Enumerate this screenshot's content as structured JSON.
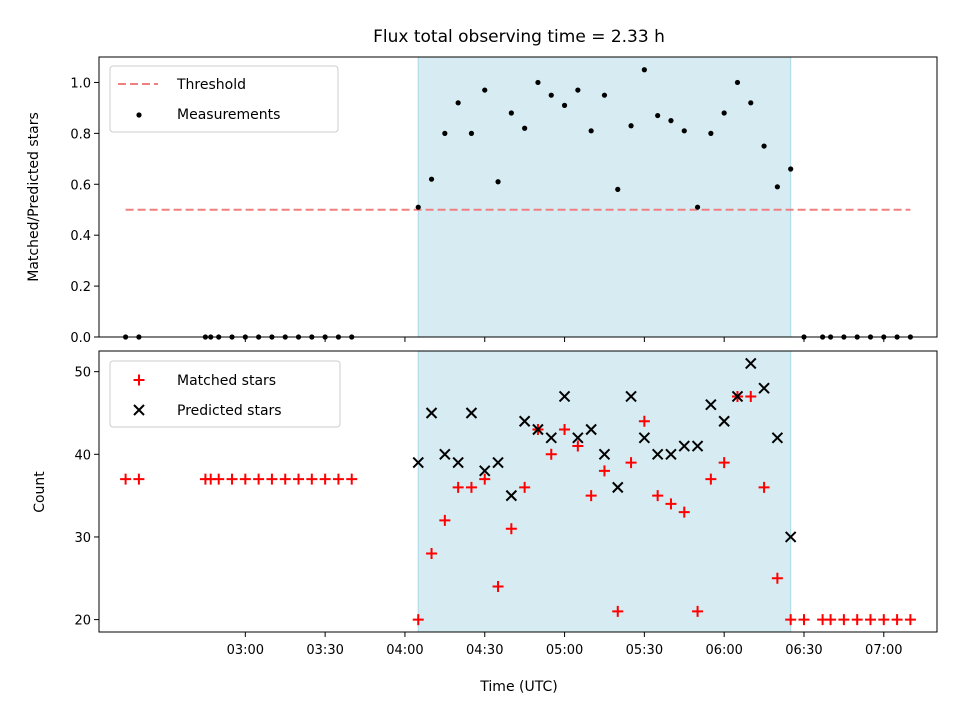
{
  "chart_data": [
    {
      "type": "scatter",
      "title": "Flux total observing time = 2.33 h",
      "xlabel": "",
      "ylabel": "Matched/Predicted stars",
      "ylim": [
        0,
        1.1
      ],
      "yticks": [
        "0.0",
        "0.2",
        "0.4",
        "0.6",
        "0.8",
        "1.0"
      ],
      "shaded_span": [
        "04:05",
        "06:25"
      ],
      "legend_position": "upper-left",
      "threshold": {
        "name": "Threshold",
        "y": 0.5,
        "x_range": [
          "02:15",
          "07:10"
        ],
        "color": "#f08080"
      },
      "series": [
        {
          "name": "Measurements",
          "color": "#000000",
          "x": [
            "02:15",
            "02:20",
            "02:45",
            "02:47",
            "02:50",
            "02:55",
            "03:00",
            "03:05",
            "03:10",
            "03:15",
            "03:20",
            "03:25",
            "03:30",
            "03:35",
            "03:40",
            "04:05",
            "04:10",
            "04:15",
            "04:20",
            "04:25",
            "04:30",
            "04:35",
            "04:40",
            "04:45",
            "04:50",
            "04:55",
            "05:00",
            "05:05",
            "05:10",
            "05:15",
            "05:20",
            "05:25",
            "05:30",
            "05:35",
            "05:40",
            "05:45",
            "05:50",
            "05:55",
            "06:00",
            "06:05",
            "06:10",
            "06:15",
            "06:20",
            "06:25",
            "06:30",
            "06:37",
            "06:40",
            "06:45",
            "06:50",
            "06:55",
            "07:00",
            "07:05",
            "07:10"
          ],
          "y": [
            0,
            0,
            0,
            0,
            0,
            0,
            0,
            0,
            0,
            0,
            0,
            0,
            0,
            0,
            0,
            0.51,
            0.62,
            0.8,
            0.92,
            0.8,
            0.97,
            0.61,
            0.88,
            0.82,
            1.0,
            0.95,
            0.91,
            0.97,
            0.81,
            0.95,
            0.58,
            0.83,
            1.05,
            0.87,
            0.85,
            0.81,
            0.51,
            0.8,
            0.88,
            1.0,
            0.92,
            0.75,
            0.59,
            0.66,
            0,
            0,
            0,
            0,
            0,
            0,
            0,
            0,
            0
          ]
        }
      ]
    },
    {
      "type": "scatter",
      "title": "",
      "xlabel": "Time (UTC)",
      "ylabel": "Count",
      "ylim": [
        18.5,
        52.5
      ],
      "yticks": [
        "20",
        "30",
        "40",
        "50"
      ],
      "xticks": [
        "03:00",
        "03:30",
        "04:00",
        "04:30",
        "05:00",
        "05:30",
        "06:00",
        "06:30",
        "07:00"
      ],
      "legend_position": "upper-left",
      "series": [
        {
          "name": "Matched stars",
          "marker": "plus",
          "color": "#ff0000",
          "x": [
            "02:15",
            "02:20",
            "02:45",
            "02:47",
            "02:50",
            "02:55",
            "03:00",
            "03:05",
            "03:10",
            "03:15",
            "03:20",
            "03:25",
            "03:30",
            "03:35",
            "03:40",
            "04:05",
            "04:10",
            "04:15",
            "04:20",
            "04:25",
            "04:30",
            "04:35",
            "04:40",
            "04:45",
            "04:50",
            "04:55",
            "05:00",
            "05:05",
            "05:10",
            "05:15",
            "05:20",
            "05:25",
            "05:30",
            "05:35",
            "05:40",
            "05:45",
            "05:50",
            "05:55",
            "06:00",
            "06:05",
            "06:10",
            "06:15",
            "06:20",
            "06:25",
            "06:30",
            "06:37",
            "06:40",
            "06:45",
            "06:50",
            "06:55",
            "07:00",
            "07:05",
            "07:10"
          ],
          "y": [
            37,
            37,
            37,
            37,
            37,
            37,
            37,
            37,
            37,
            37,
            37,
            37,
            37,
            37,
            37,
            20,
            28,
            32,
            36,
            36,
            37,
            24,
            31,
            36,
            43,
            40,
            43,
            41,
            35,
            38,
            21,
            39,
            44,
            35,
            34,
            33,
            21,
            37,
            39,
            47,
            47,
            36,
            25,
            20,
            20,
            20,
            20,
            20,
            20,
            20,
            20,
            20,
            20
          ]
        },
        {
          "name": "Predicted stars",
          "marker": "x",
          "color": "#000000",
          "x": [
            "04:05",
            "04:10",
            "04:15",
            "04:20",
            "04:25",
            "04:30",
            "04:35",
            "04:40",
            "04:45",
            "04:50",
            "04:55",
            "05:00",
            "05:05",
            "05:10",
            "05:15",
            "05:20",
            "05:25",
            "05:30",
            "05:35",
            "05:40",
            "05:45",
            "05:50",
            "05:55",
            "06:00",
            "06:05",
            "06:10",
            "06:15",
            "06:20",
            "06:25"
          ],
          "y": [
            39,
            45,
            40,
            39,
            45,
            38,
            39,
            35,
            44,
            43,
            42,
            47,
            42,
            43,
            40,
            36,
            47,
            42,
            40,
            40,
            41,
            41,
            46,
            44,
            47,
            51,
            48,
            42,
            30
          ]
        }
      ]
    }
  ]
}
